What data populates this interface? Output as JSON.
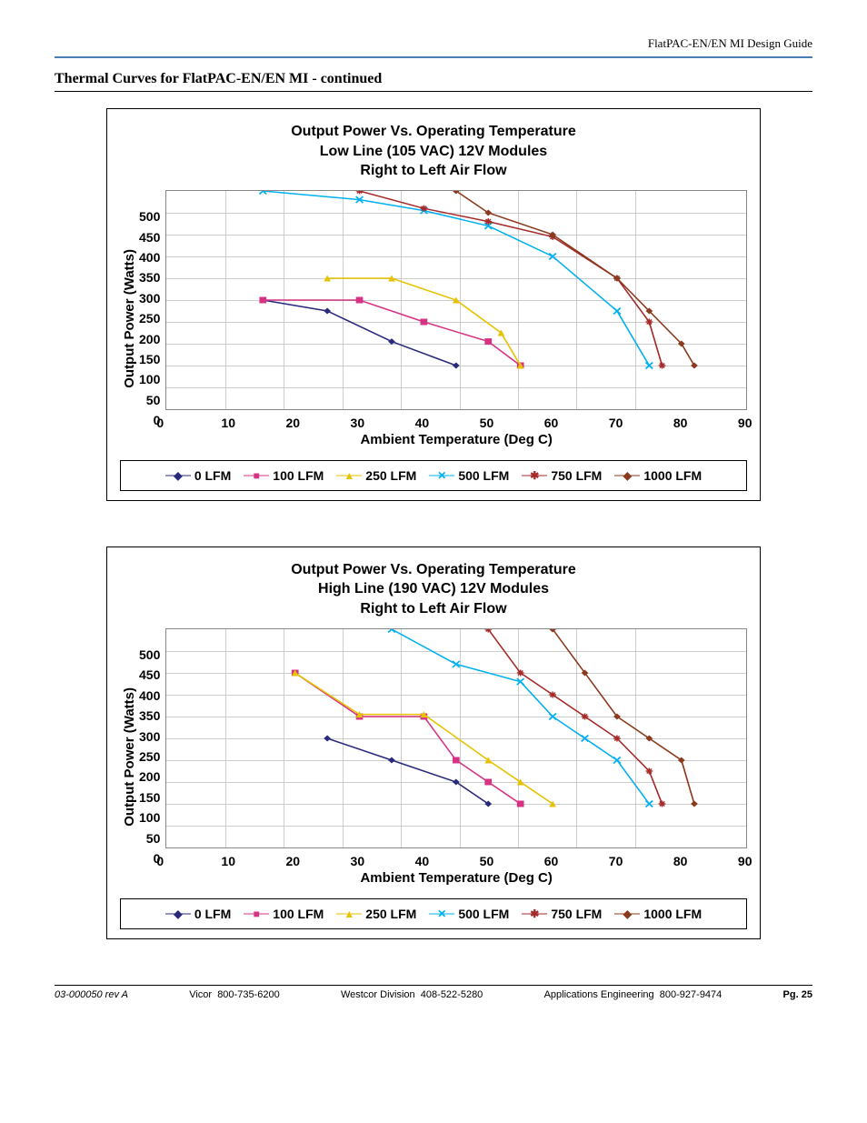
{
  "header": {
    "doc_title": "FlatPAC-EN/EN MI Design Guide",
    "hr_color": "#4a7fb5"
  },
  "section_title": "Thermal Curves for FlatPAC-EN/EN MI - continued",
  "grid_color": "#c0c0c0",
  "charts": [
    {
      "type": "line",
      "title_lines": [
        "Output Power Vs. Operating Temperature",
        "Low Line (105 VAC) 12V Modules",
        "Right to Left Air Flow"
      ],
      "ylabel": "Output Power (Watts)",
      "xlabel": "Ambient Temperature (Deg C)",
      "xlim": [
        0,
        90
      ],
      "ylim": [
        0,
        500
      ],
      "xticks": [
        0,
        10,
        20,
        30,
        40,
        50,
        60,
        70,
        80,
        90
      ],
      "yticks": [
        0,
        50,
        100,
        150,
        200,
        250,
        300,
        350,
        400,
        450,
        500
      ],
      "title_fontsize": 16,
      "label_fontsize": 15,
      "tick_fontsize": 14,
      "line_width": 1.5,
      "marker_size": 7,
      "background_color": "#ffffff",
      "series": [
        {
          "label": "0 LFM",
          "color": "#2a2a7c",
          "marker": "diamond",
          "x": [
            15,
            25,
            35,
            45
          ],
          "y": [
            250,
            225,
            155,
            100
          ]
        },
        {
          "label": "100 LFM",
          "color": "#d63384",
          "marker": "square",
          "x": [
            15,
            30,
            40,
            50,
            55
          ],
          "y": [
            250,
            250,
            200,
            155,
            100
          ]
        },
        {
          "label": "250 LFM",
          "color": "#e6c200",
          "marker": "triangle",
          "x": [
            25,
            35,
            45,
            52,
            55
          ],
          "y": [
            300,
            300,
            250,
            175,
            100
          ]
        },
        {
          "label": "500 LFM",
          "color": "#00b0f0",
          "marker": "x",
          "x": [
            15,
            30,
            40,
            50,
            60,
            70,
            75
          ],
          "y": [
            500,
            480,
            455,
            420,
            350,
            225,
            100
          ]
        },
        {
          "label": "750 LFM",
          "color": "#a52a2a",
          "marker": "asterisk",
          "x": [
            30,
            40,
            50,
            60,
            70,
            75,
            77
          ],
          "y": [
            500,
            460,
            430,
            395,
            300,
            200,
            100
          ]
        },
        {
          "label": "1000 LFM",
          "color": "#8b3a1e",
          "marker": "diamond",
          "x": [
            45,
            50,
            60,
            70,
            75,
            80,
            82
          ],
          "y": [
            500,
            450,
            400,
            300,
            225,
            150,
            100
          ]
        }
      ]
    },
    {
      "type": "line",
      "title_lines": [
        "Output Power Vs. Operating Temperature",
        "High Line (190 VAC) 12V Modules",
        "Right to Left Air Flow"
      ],
      "ylabel": "Output Power (Watts)",
      "xlabel": "Ambient Temperature (Deg C)",
      "xlim": [
        0,
        90
      ],
      "ylim": [
        0,
        500
      ],
      "xticks": [
        0,
        10,
        20,
        30,
        40,
        50,
        60,
        70,
        80,
        90
      ],
      "yticks": [
        0,
        50,
        100,
        150,
        200,
        250,
        300,
        350,
        400,
        450,
        500
      ],
      "title_fontsize": 16,
      "label_fontsize": 15,
      "tick_fontsize": 14,
      "line_width": 1.5,
      "marker_size": 7,
      "background_color": "#ffffff",
      "series": [
        {
          "label": "0 LFM",
          "color": "#2a2a7c",
          "marker": "diamond",
          "x": [
            25,
            35,
            45,
            50
          ],
          "y": [
            250,
            200,
            150,
            100
          ]
        },
        {
          "label": "100 LFM",
          "color": "#d63384",
          "marker": "square",
          "x": [
            20,
            30,
            40,
            45,
            50,
            55
          ],
          "y": [
            400,
            300,
            300,
            200,
            150,
            100
          ]
        },
        {
          "label": "250 LFM",
          "color": "#e6c200",
          "marker": "triangle",
          "x": [
            20,
            30,
            40,
            50,
            55,
            60
          ],
          "y": [
            400,
            305,
            305,
            200,
            150,
            100
          ]
        },
        {
          "label": "500 LFM",
          "color": "#00b0f0",
          "marker": "x",
          "x": [
            35,
            45,
            55,
            60,
            65,
            70,
            75
          ],
          "y": [
            500,
            420,
            380,
            300,
            250,
            200,
            100
          ]
        },
        {
          "label": "750 LFM",
          "color": "#a52a2a",
          "marker": "asterisk",
          "x": [
            50,
            55,
            60,
            65,
            70,
            75,
            77
          ],
          "y": [
            500,
            400,
            350,
            300,
            250,
            175,
            100
          ]
        },
        {
          "label": "1000 LFM",
          "color": "#8b3a1e",
          "marker": "diamond",
          "x": [
            60,
            65,
            70,
            75,
            80,
            82
          ],
          "y": [
            500,
            400,
            300,
            250,
            200,
            100
          ]
        }
      ]
    }
  ],
  "legend_markers": {
    "diamond": "◆",
    "square": "■",
    "triangle": "▲",
    "x": "✕",
    "asterisk": "✱"
  },
  "footer": {
    "rev": "03-000050 rev A",
    "c1": "Vicor",
    "p1": "800-735-6200",
    "c2": "Westcor Division",
    "p2": "408-522-5280",
    "c3": "Applications Engineering",
    "p3": "800-927-9474",
    "page": "Pg. 25"
  }
}
